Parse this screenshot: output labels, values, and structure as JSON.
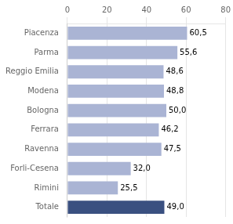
{
  "chart_data": {
    "type": "bar",
    "orientation": "horizontal",
    "categories": [
      "Piacenza",
      "Parma",
      "Reggio Emilia",
      "Modena",
      "Bologna",
      "Ferrara",
      "Ravenna",
      "Forli-Cesena",
      "Rimini",
      "Totale"
    ],
    "values": [
      60.5,
      55.6,
      48.6,
      48.8,
      50.0,
      46.2,
      47.5,
      32.0,
      25.5,
      49.0
    ],
    "value_labels": [
      "60,5",
      "55,6",
      "48,6",
      "48,8",
      "50,0",
      "46,2",
      "47,5",
      "32,0",
      "25,5",
      "49,0"
    ],
    "colors": [
      "#aab4d4",
      "#aab4d4",
      "#aab4d4",
      "#aab4d4",
      "#aab4d4",
      "#aab4d4",
      "#aab4d4",
      "#aab4d4",
      "#aab4d4",
      "#3a5080"
    ],
    "xlim": [
      0,
      80
    ],
    "xticks": [
      0,
      20,
      40,
      60,
      80
    ],
    "grid": true,
    "data_labels": true
  }
}
